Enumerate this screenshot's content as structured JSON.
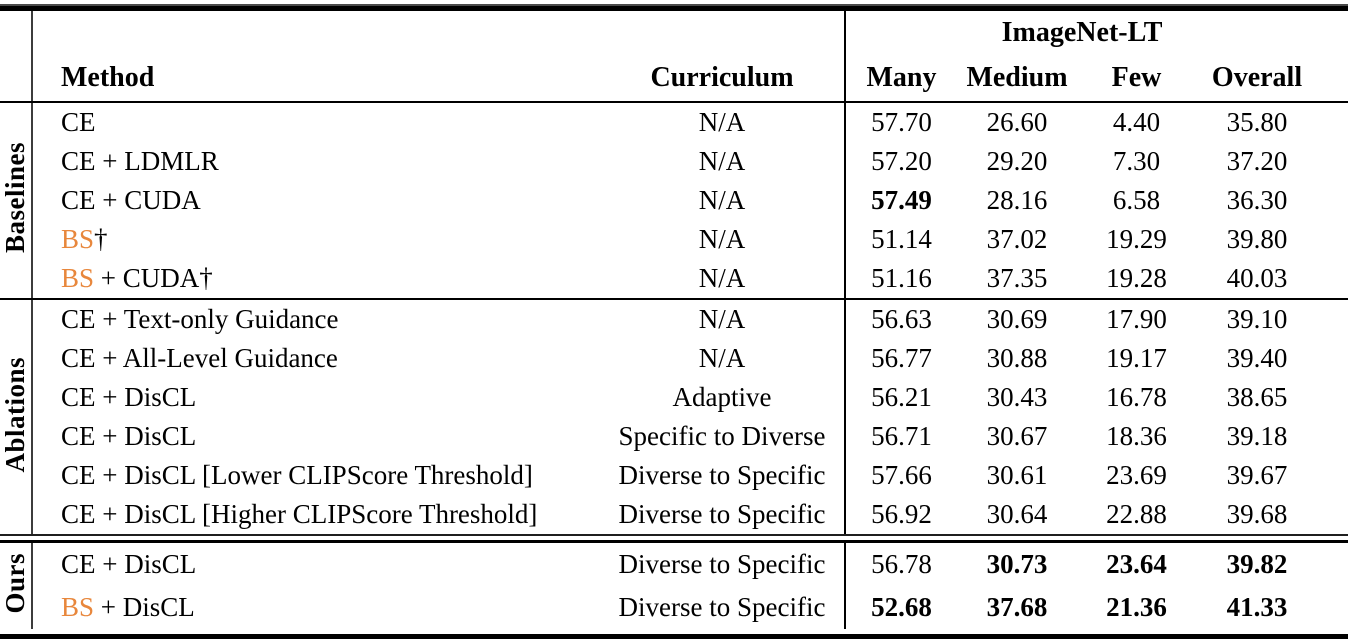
{
  "accent_color": "#e8873c",
  "rule_color": "#000000",
  "header": {
    "dataset_group": "ImageNet-LT",
    "col_method": "Method",
    "col_curriculum": "Curriculum",
    "col_many": "Many",
    "col_medium": "Medium",
    "col_few": "Few",
    "col_overall": "Overall"
  },
  "sections": [
    {
      "label": "Baselines",
      "rows": [
        {
          "method_prefix": "",
          "method_rest": "CE",
          "curriculum": "N/A",
          "many": "57.70",
          "medium": "26.60",
          "few": "4.40",
          "overall": "35.80"
        },
        {
          "method_prefix": "",
          "method_rest": "CE + LDMLR",
          "curriculum": "N/A",
          "many": "57.20",
          "medium": "29.20",
          "few": "7.30",
          "overall": "37.20"
        },
        {
          "method_prefix": "",
          "method_rest": "CE + CUDA",
          "curriculum": "N/A",
          "many": "57.49",
          "medium": "28.16",
          "few": "6.58",
          "overall": "36.30"
        },
        {
          "method_prefix": "BS",
          "method_rest": "†",
          "curriculum": "N/A",
          "many": "51.14",
          "medium": "37.02",
          "few": "19.29",
          "overall": "39.80"
        },
        {
          "method_prefix": "BS",
          "method_rest": " + CUDA†",
          "curriculum": "N/A",
          "many": "51.16",
          "medium": "37.35",
          "few": "19.28",
          "overall": "40.03"
        }
      ]
    },
    {
      "label": "Ablations",
      "rows": [
        {
          "method_prefix": "",
          "method_rest": "CE + Text-only Guidance",
          "curriculum": "N/A",
          "many": "56.63",
          "medium": "30.69",
          "few": "17.90",
          "overall": "39.10"
        },
        {
          "method_prefix": "",
          "method_rest": "CE + All-Level Guidance",
          "curriculum": "N/A",
          "many": "56.77",
          "medium": "30.88",
          "few": "19.17",
          "overall": "39.40"
        },
        {
          "method_prefix": "",
          "method_rest": "CE + DisCL",
          "curriculum": "Adaptive",
          "many": "56.21",
          "medium": "30.43",
          "few": "16.78",
          "overall": "38.65"
        },
        {
          "method_prefix": "",
          "method_rest": "CE + DisCL",
          "curriculum": "Specific to Diverse",
          "many": "56.71",
          "medium": "30.67",
          "few": "18.36",
          "overall": "39.18"
        },
        {
          "method_prefix": "",
          "method_rest": "CE + DisCL [Lower CLIPScore Threshold]",
          "curriculum": "Diverse to Specific",
          "many": "57.66",
          "medium": "30.61",
          "few": "23.69",
          "overall": "39.67"
        },
        {
          "method_prefix": "",
          "method_rest": "CE + DisCL [Higher CLIPScore Threshold]",
          "curriculum": "Diverse to Specific",
          "many": "56.92",
          "medium": "30.64",
          "few": "22.88",
          "overall": "39.68"
        }
      ]
    },
    {
      "label": "Ours",
      "rows": [
        {
          "method_prefix": "",
          "method_rest": "CE + DisCL",
          "curriculum": "Diverse to Specific",
          "many": "56.78",
          "medium": "30.73",
          "few": "23.64",
          "overall": "39.82"
        },
        {
          "method_prefix": "BS",
          "method_rest": " + DisCL",
          "curriculum": "Diverse to Specific",
          "many": "52.68",
          "medium": "37.68",
          "few": "21.36",
          "overall": "41.33"
        }
      ]
    }
  ]
}
